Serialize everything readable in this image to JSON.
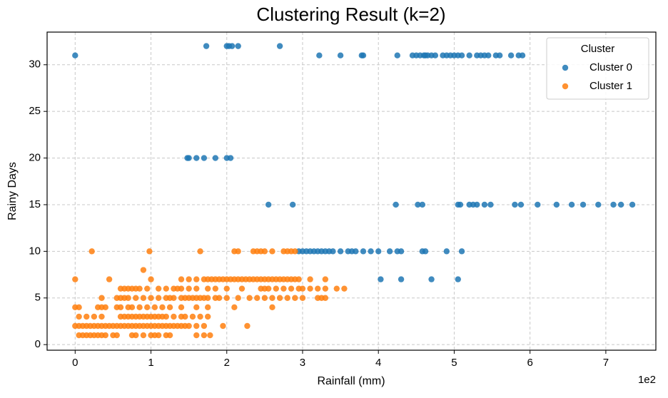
{
  "chart_data": {
    "type": "scatter",
    "title": "Clustering Result (k=2)",
    "x_label": "Rainfall (mm)",
    "y_label": "Rainy Days",
    "x_offset_label": "1e2",
    "xlim": [
      -37,
      766
    ],
    "ylim": [
      -0.6,
      33.5
    ],
    "xticks": [
      {
        "value": 0,
        "label": "0"
      },
      {
        "value": 100,
        "label": "1"
      },
      {
        "value": 200,
        "label": "2"
      },
      {
        "value": 300,
        "label": "3"
      },
      {
        "value": 400,
        "label": "4"
      },
      {
        "value": 500,
        "label": "5"
      },
      {
        "value": 600,
        "label": "6"
      },
      {
        "value": 700,
        "label": "7"
      }
    ],
    "yticks": [
      0,
      5,
      10,
      15,
      20,
      25,
      30
    ],
    "grid": true,
    "legend_title": "Cluster",
    "legend_location": "upper right",
    "series": [
      {
        "name": "Cluster 0",
        "color": "#1f77b4",
        "x": [
          0,
          322,
          350,
          378,
          380,
          425,
          445,
          450,
          455,
          460,
          462,
          465,
          470,
          475,
          485,
          490,
          495,
          500,
          505,
          510,
          520,
          530,
          535,
          540,
          545,
          555,
          560,
          575,
          585,
          590,
          173,
          200,
          203,
          207,
          215,
          270,
          148,
          150,
          160,
          170,
          185,
          200,
          205,
          255,
          287,
          423,
          452,
          458,
          505,
          508,
          520,
          525,
          530,
          540,
          548,
          580,
          588,
          610,
          635,
          655,
          670,
          690,
          710,
          720,
          735,
          295,
          300,
          305,
          310,
          315,
          320,
          325,
          330,
          335,
          340,
          350,
          360,
          365,
          370,
          380,
          390,
          400,
          415,
          425,
          430,
          458,
          462,
          490,
          510,
          403,
          430,
          470,
          505
        ],
        "values": [
          31,
          31,
          31,
          31,
          31,
          31,
          31,
          31,
          31,
          31,
          31,
          31,
          31,
          31,
          31,
          31,
          31,
          31,
          31,
          31,
          31,
          31,
          31,
          31,
          31,
          31,
          31,
          31,
          31,
          31,
          32,
          32,
          32,
          32,
          32,
          32,
          20,
          20,
          20,
          20,
          20,
          20,
          20,
          15,
          15,
          15,
          15,
          15,
          15,
          15,
          15,
          15,
          15,
          15,
          15,
          15,
          15,
          15,
          15,
          15,
          15,
          15,
          15,
          15,
          15,
          10,
          10,
          10,
          10,
          10,
          10,
          10,
          10,
          10,
          10,
          10,
          10,
          10,
          10,
          10,
          10,
          10,
          10,
          10,
          10,
          10,
          10,
          10,
          10,
          7,
          7,
          7,
          7
        ]
      },
      {
        "name": "Cluster 1",
        "color": "#ff7f0e",
        "x": [
          22,
          98,
          165,
          210,
          215,
          235,
          240,
          245,
          250,
          260,
          275,
          280,
          285,
          290,
          90,
          0,
          45,
          100,
          140,
          150,
          160,
          170,
          175,
          180,
          185,
          190,
          195,
          200,
          205,
          210,
          215,
          220,
          225,
          230,
          235,
          240,
          245,
          250,
          255,
          260,
          265,
          270,
          275,
          280,
          285,
          290,
          295,
          310,
          330,
          60,
          65,
          70,
          75,
          80,
          85,
          95,
          110,
          120,
          130,
          135,
          140,
          150,
          160,
          175,
          185,
          200,
          220,
          245,
          250,
          255,
          265,
          275,
          285,
          295,
          300,
          310,
          320,
          330,
          345,
          355,
          35,
          55,
          60,
          65,
          70,
          80,
          90,
          100,
          110,
          120,
          125,
          130,
          140,
          145,
          150,
          155,
          160,
          165,
          170,
          175,
          185,
          190,
          200,
          215,
          230,
          240,
          250,
          260,
          270,
          280,
          290,
          300,
          320,
          325,
          330,
          0,
          5,
          30,
          35,
          40,
          55,
          60,
          70,
          75,
          85,
          95,
          105,
          115,
          125,
          140,
          160,
          175,
          210,
          260,
          5,
          15,
          25,
          35,
          60,
          65,
          70,
          75,
          80,
          85,
          90,
          95,
          100,
          105,
          110,
          115,
          120,
          130,
          140,
          145,
          155,
          165,
          175,
          0,
          5,
          10,
          15,
          20,
          25,
          30,
          35,
          40,
          45,
          50,
          55,
          60,
          65,
          70,
          75,
          80,
          85,
          90,
          95,
          100,
          105,
          110,
          115,
          120,
          125,
          130,
          135,
          140,
          145,
          150,
          160,
          170,
          195,
          227,
          5,
          10,
          15,
          20,
          25,
          30,
          35,
          40,
          50,
          55,
          75,
          80,
          90,
          100,
          105,
          110,
          120,
          125,
          160,
          170,
          178
        ],
        "values": [
          10,
          10,
          10,
          10,
          10,
          10,
          10,
          10,
          10,
          10,
          10,
          10,
          10,
          10,
          8,
          7,
          7,
          7,
          7,
          7,
          7,
          7,
          7,
          7,
          7,
          7,
          7,
          7,
          7,
          7,
          7,
          7,
          7,
          7,
          7,
          7,
          7,
          7,
          7,
          7,
          7,
          7,
          7,
          7,
          7,
          7,
          7,
          7,
          7,
          6,
          6,
          6,
          6,
          6,
          6,
          6,
          6,
          6,
          6,
          6,
          6,
          6,
          6,
          6,
          6,
          6,
          6,
          6,
          6,
          6,
          6,
          6,
          6,
          6,
          6,
          6,
          6,
          6,
          6,
          6,
          5,
          5,
          5,
          5,
          5,
          5,
          5,
          5,
          5,
          5,
          5,
          5,
          5,
          5,
          5,
          5,
          5,
          5,
          5,
          5,
          5,
          5,
          5,
          5,
          5,
          5,
          5,
          5,
          5,
          5,
          5,
          5,
          5,
          5,
          5,
          4,
          4,
          4,
          4,
          4,
          4,
          4,
          4,
          4,
          4,
          4,
          4,
          4,
          4,
          4,
          4,
          4,
          4,
          4,
          3,
          3,
          3,
          3,
          3,
          3,
          3,
          3,
          3,
          3,
          3,
          3,
          3,
          3,
          3,
          3,
          3,
          3,
          3,
          3,
          3,
          3,
          3,
          2,
          2,
          2,
          2,
          2,
          2,
          2,
          2,
          2,
          2,
          2,
          2,
          2,
          2,
          2,
          2,
          2,
          2,
          2,
          2,
          2,
          2,
          2,
          2,
          2,
          2,
          2,
          2,
          2,
          2,
          2,
          2,
          2,
          2,
          2,
          1,
          1,
          1,
          1,
          1,
          1,
          1,
          1,
          1,
          1,
          1,
          1,
          1,
          1,
          1,
          1,
          1,
          1,
          1,
          1,
          1
        ]
      }
    ]
  }
}
